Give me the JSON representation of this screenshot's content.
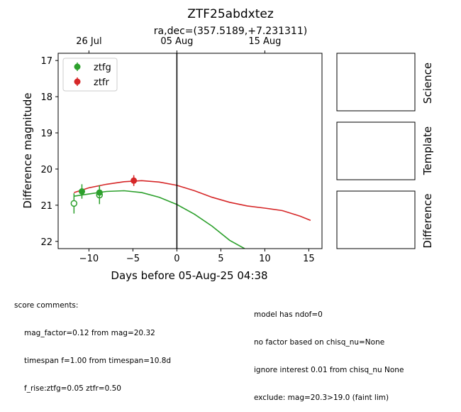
{
  "chart_data": {
    "type": "scatter",
    "title": "ZTF25abdxtez",
    "subtitle": "ra,dec=(357.5189,+7.231311)",
    "xlabel": "Days before 05-Aug-25 04:38",
    "ylabel": "Difference magnitude",
    "xlim": [
      -13.5,
      16.5
    ],
    "ylim": [
      22.2,
      16.8
    ],
    "y_inverted": true,
    "x_ticks": [
      -10,
      -5,
      0,
      5,
      10,
      15
    ],
    "x_tick_labels": [
      "−10",
      "−5",
      "0",
      "5",
      "10",
      "15"
    ],
    "y_ticks": [
      17,
      18,
      19,
      20,
      21,
      22
    ],
    "y_tick_labels": [
      "17",
      "18",
      "19",
      "20",
      "21",
      "22"
    ],
    "top_axis": {
      "ticks": [
        -10,
        0,
        10
      ],
      "labels": [
        "26 Jul",
        "05 Aug",
        "15 Aug"
      ]
    },
    "reference_line_x": 0,
    "legend_position": "upper-left",
    "series": [
      {
        "name": "ztfg",
        "color": "#2ca02c",
        "detections": [
          {
            "x": -10.8,
            "y": 20.62,
            "err": 0.2
          },
          {
            "x": -8.8,
            "y": 20.65,
            "err": 0.2
          }
        ],
        "upper_limits": [
          {
            "x": -11.7,
            "y": 20.95,
            "err": 0.28
          },
          {
            "x": -8.8,
            "y": 20.72,
            "err": 0.25
          }
        ],
        "model": {
          "x": [
            -11.7,
            -10,
            -8,
            -6,
            -4,
            -2,
            0,
            2,
            4,
            6,
            7.7
          ],
          "y": [
            20.75,
            20.69,
            20.62,
            20.6,
            20.65,
            20.78,
            20.98,
            21.25,
            21.58,
            21.97,
            22.2
          ]
        }
      },
      {
        "name": "ztfr",
        "color": "#d62728",
        "detections": [
          {
            "x": -4.9,
            "y": 20.32,
            "err": 0.15
          }
        ],
        "upper_limits": [],
        "model": {
          "x": [
            -11.7,
            -10,
            -8,
            -6,
            -4,
            -2,
            0,
            2,
            4,
            6,
            8,
            10,
            12,
            14,
            15.2
          ],
          "y": [
            20.65,
            20.52,
            20.42,
            20.35,
            20.32,
            20.36,
            20.45,
            20.6,
            20.78,
            20.92,
            21.02,
            21.08,
            21.15,
            21.3,
            21.42
          ]
        }
      }
    ]
  },
  "stamps": [
    {
      "label": "Science"
    },
    {
      "label": "Template"
    },
    {
      "label": "Difference"
    }
  ],
  "comments_left": {
    "header": "score comments:",
    "lines": [
      "mag_factor=0.12 from mag=20.32",
      "timespan f=1.00 from timespan=10.8d",
      "f_rise:ztfg=0.05 ztfr=0.50"
    ]
  },
  "comments_right": {
    "lines": [
      "model has ndof=0",
      "no factor based on chisq_nu=None",
      "ignore interest 0.01 from chisq_nu None",
      "exclude: mag=20.3>19.0 (faint lim)"
    ]
  }
}
